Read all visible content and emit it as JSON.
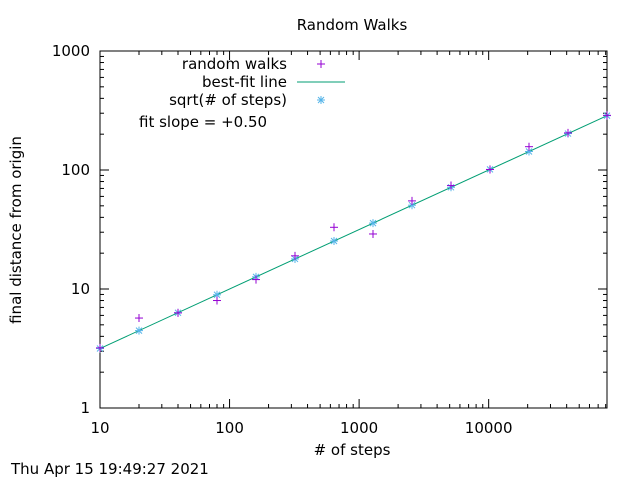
{
  "chart_data": {
    "type": "scatter",
    "title": "Random Walks",
    "xlabel": "# of steps",
    "ylabel": "final distance from origin",
    "xscale": "log",
    "yscale": "log",
    "xlim": [
      10,
      81920
    ],
    "ylim": [
      1,
      1000
    ],
    "x_ticks": [
      10,
      100,
      1000,
      10000
    ],
    "x_tick_labels": [
      "10",
      "100",
      "1000",
      "10000"
    ],
    "y_ticks": [
      1,
      10,
      100,
      1000
    ],
    "y_tick_labels": [
      "1",
      "10",
      "100",
      "1000"
    ],
    "grid": false,
    "legend_position": "top-left",
    "annotation": "fit slope = +0.50",
    "series": [
      {
        "name": "random walks",
        "marker": "+",
        "color": "#9400d3",
        "points": [
          [
            10,
            3.2
          ],
          [
            20,
            5.7
          ],
          [
            40,
            6.3
          ],
          [
            80,
            8.0
          ],
          [
            160,
            12.0
          ],
          [
            320,
            19.0
          ],
          [
            640,
            33.0
          ],
          [
            1280,
            29.0
          ],
          [
            2560,
            55.0
          ],
          [
            5120,
            74.0
          ],
          [
            10240,
            101.0
          ],
          [
            20480,
            157.0
          ],
          [
            40960,
            205.0
          ],
          [
            81920,
            288.0
          ]
        ]
      },
      {
        "name": "best-fit line",
        "marker": "line",
        "color": "#009e73",
        "slope": 0.5,
        "intercept_at_x10": 3.16
      },
      {
        "name": "sqrt(# of steps)",
        "marker": "*",
        "color": "#56b4e9",
        "points": [
          [
            10,
            3.16
          ],
          [
            20,
            4.47
          ],
          [
            40,
            6.32
          ],
          [
            80,
            8.94
          ],
          [
            160,
            12.65
          ],
          [
            320,
            17.89
          ],
          [
            640,
            25.3
          ],
          [
            1280,
            35.78
          ],
          [
            2560,
            50.6
          ],
          [
            5120,
            71.55
          ],
          [
            10240,
            101.19
          ],
          [
            20480,
            143.11
          ],
          [
            40960,
            202.39
          ],
          [
            81920,
            286.22
          ]
        ]
      }
    ]
  },
  "timestamp": "Thu Apr 15 19:49:27 2021"
}
